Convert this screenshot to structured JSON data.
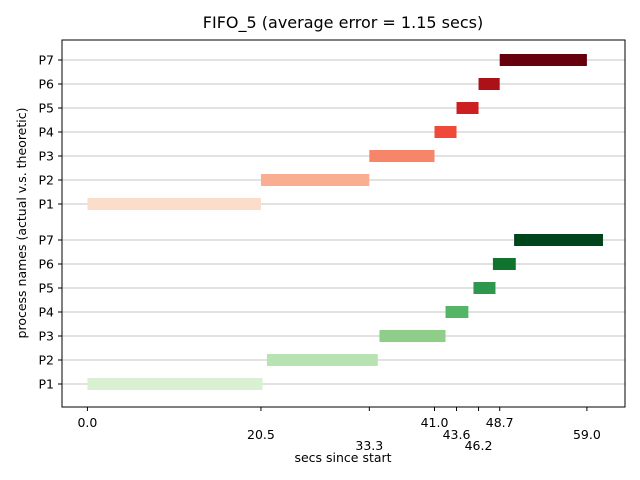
{
  "chart_data": {
    "type": "gantt",
    "title": "FIFO_5 (average error = 1.15 secs)",
    "xlabel": "secs since start",
    "ylabel": "process names (actual v.s. theoretic)",
    "xlim": [
      -3,
      63.5
    ],
    "x_ticks": [
      0.0,
      20.5,
      33.3,
      41.0,
      43.6,
      46.2,
      48.7,
      59.0
    ],
    "x_tick_labels": [
      "0.0",
      "20.5",
      "33.3",
      "41.0",
      "43.6",
      "46.2",
      "48.7",
      "59.0"
    ],
    "grid": "horizontal",
    "groups": [
      {
        "colormap": "greens",
        "bars": [
          {
            "label": "P1",
            "start": 0.0,
            "end": 20.7,
            "color": "#d9f0d3"
          },
          {
            "label": "P2",
            "start": 21.2,
            "end": 34.3,
            "color": "#b7e2b1"
          },
          {
            "label": "P3",
            "start": 34.5,
            "end": 42.3,
            "color": "#8ece88"
          },
          {
            "label": "P4",
            "start": 42.3,
            "end": 45.0,
            "color": "#55b567"
          },
          {
            "label": "P5",
            "start": 45.6,
            "end": 48.2,
            "color": "#2e964d"
          },
          {
            "label": "P6",
            "start": 47.9,
            "end": 50.6,
            "color": "#10742f"
          },
          {
            "label": "P7",
            "start": 50.4,
            "end": 60.9,
            "color": "#00441b"
          }
        ]
      },
      {
        "colormap": "reds",
        "bars": [
          {
            "label": "P1",
            "start": 0.0,
            "end": 20.5,
            "color": "#fcdcca"
          },
          {
            "label": "P2",
            "start": 20.5,
            "end": 33.3,
            "color": "#f9ad91"
          },
          {
            "label": "P3",
            "start": 33.3,
            "end": 41.0,
            "color": "#f6856a"
          },
          {
            "label": "P4",
            "start": 41.0,
            "end": 43.6,
            "color": "#ef4a39"
          },
          {
            "label": "P5",
            "start": 43.6,
            "end": 46.2,
            "color": "#cc1f22"
          },
          {
            "label": "P6",
            "start": 46.2,
            "end": 48.7,
            "color": "#ab1117"
          },
          {
            "label": "P7",
            "start": 48.7,
            "end": 59.0,
            "color": "#67000d"
          }
        ]
      }
    ]
  }
}
